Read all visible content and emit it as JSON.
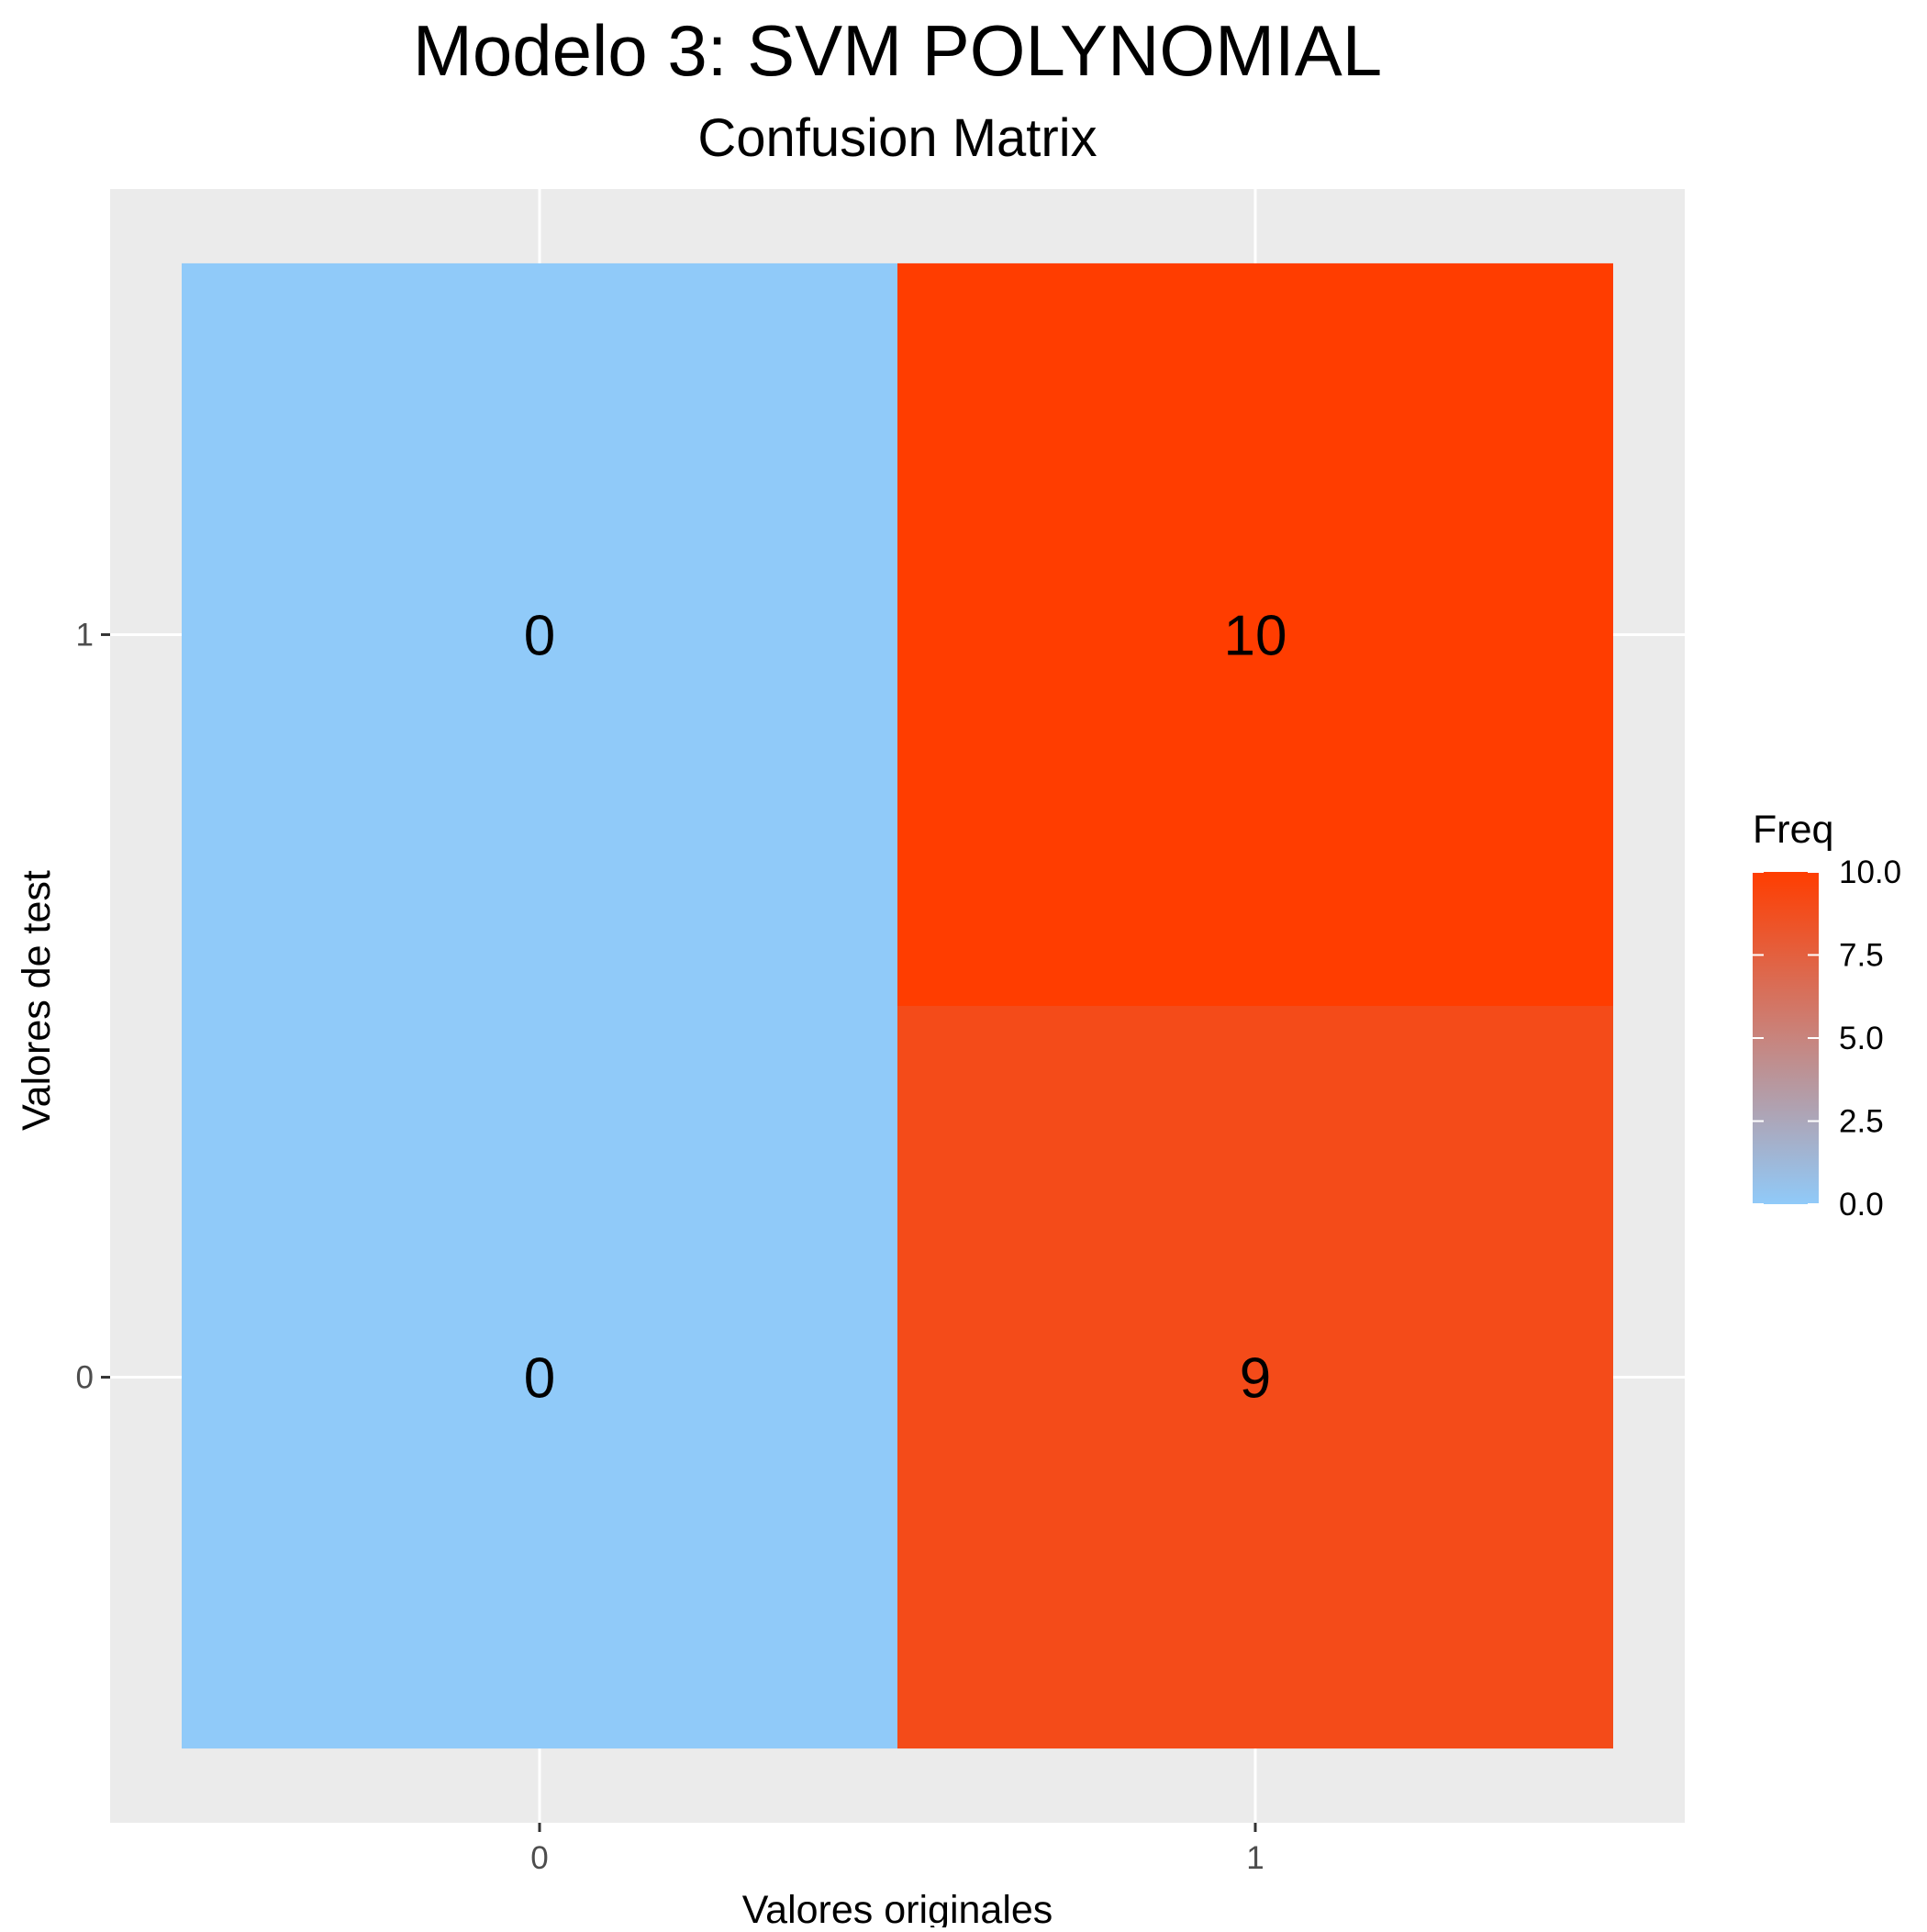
{
  "chart_data": {
    "type": "heatmap",
    "title": "Modelo 3: SVM POLYNOMIAL",
    "subtitle": "Confusion Matrix",
    "xlabel": "Valores originales",
    "ylabel": "Valores de test",
    "x_categories": [
      "0",
      "1"
    ],
    "y_categories": [
      "0",
      "1"
    ],
    "cells": [
      {
        "x": "0",
        "y": "0",
        "value": 0
      },
      {
        "x": "1",
        "y": "0",
        "value": 9
      },
      {
        "x": "0",
        "y": "1",
        "value": 0
      },
      {
        "x": "1",
        "y": "1",
        "value": 10
      }
    ],
    "legend": {
      "title": "Freq",
      "ticks": [
        "0.0",
        "2.5",
        "5.0",
        "7.5",
        "10.0"
      ],
      "tick_values": [
        0,
        2.5,
        5,
        7.5,
        10
      ],
      "range": [
        0,
        10
      ],
      "placement": "right"
    },
    "colors": {
      "low": "#90caf9",
      "high": "#ff3d00",
      "panel_background": "#ebebeb",
      "grid": "#ffffff",
      "text": "#000000",
      "axis_text": "#4d4d4d"
    },
    "grid": true
  }
}
